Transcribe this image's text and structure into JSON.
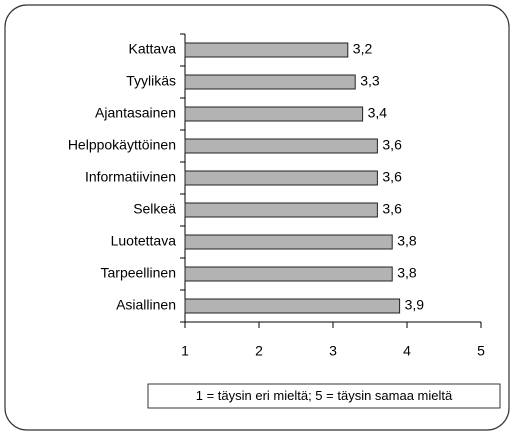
{
  "chart_data": {
    "type": "bar",
    "orientation": "horizontal",
    "categories": [
      "Kattava",
      "Tyylikäs",
      "Ajantasainen",
      "Helppokäyttöinen",
      "Informatiivinen",
      "Selkeä",
      "Luotettava",
      "Tarpeellinen",
      "Asiallinen"
    ],
    "values": [
      3.2,
      3.3,
      3.4,
      3.6,
      3.6,
      3.6,
      3.8,
      3.8,
      3.9
    ],
    "value_labels": [
      "3,2",
      "3,3",
      "3,4",
      "3,6",
      "3,6",
      "3,6",
      "3,8",
      "3,8",
      "3,9"
    ],
    "color": "#b3b3b3",
    "xlim": [
      1,
      5
    ],
    "xticks": [
      1,
      2,
      3,
      4,
      5
    ],
    "annotation": "1 = täysin eri mieltä; 5 = täysin samaa mieltä"
  }
}
